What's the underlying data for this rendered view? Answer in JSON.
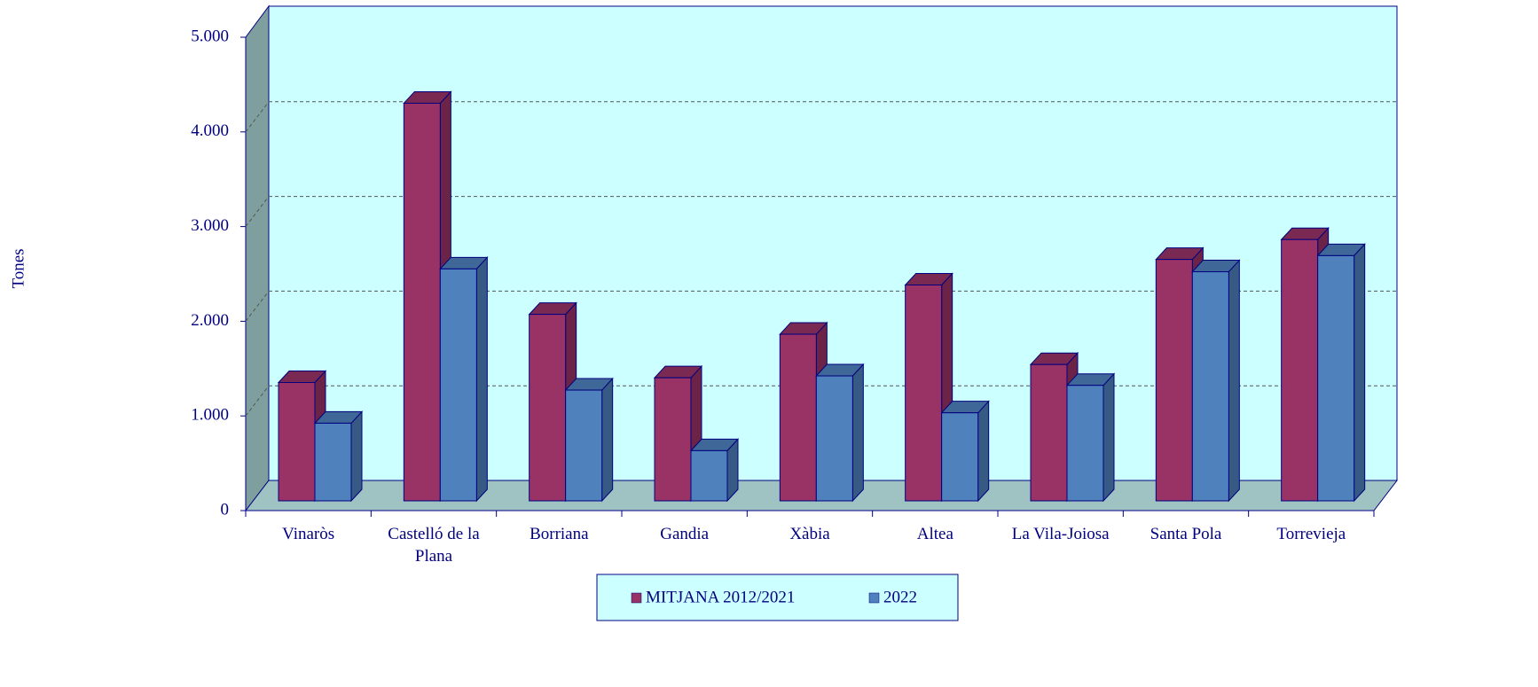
{
  "chart_data": {
    "type": "bar3d",
    "y_label": "Tones",
    "categories": [
      "Vinaròs",
      "Castelló de la Plana",
      "Borriana",
      "Gandia",
      "Xàbia",
      "Altea",
      "La Vila-Joiosa",
      "Santa Pola",
      "Torrevieja"
    ],
    "series": [
      {
        "name": "MITJANA 2012/2021",
        "color": "#993366",
        "values": [
          1250,
          4200,
          1970,
          1300,
          1760,
          2280,
          1440,
          2550,
          2760
        ]
      },
      {
        "name": "2022",
        "color": "#4f81bd",
        "values": [
          820,
          2450,
          1170,
          530,
          1320,
          930,
          1220,
          2420,
          2590
        ]
      }
    ],
    "ylim": [
      0,
      5000
    ],
    "yticks": [
      0,
      {
        "value": 1000,
        "label": "1.000"
      },
      {
        "value": 2000,
        "label": "2.000"
      },
      {
        "value": 3000,
        "label": "3.000"
      },
      {
        "value": 4000,
        "label": "4.000"
      },
      {
        "value": 5000,
        "label": "5.000"
      }
    ],
    "grid": true,
    "legend": "bottom"
  }
}
